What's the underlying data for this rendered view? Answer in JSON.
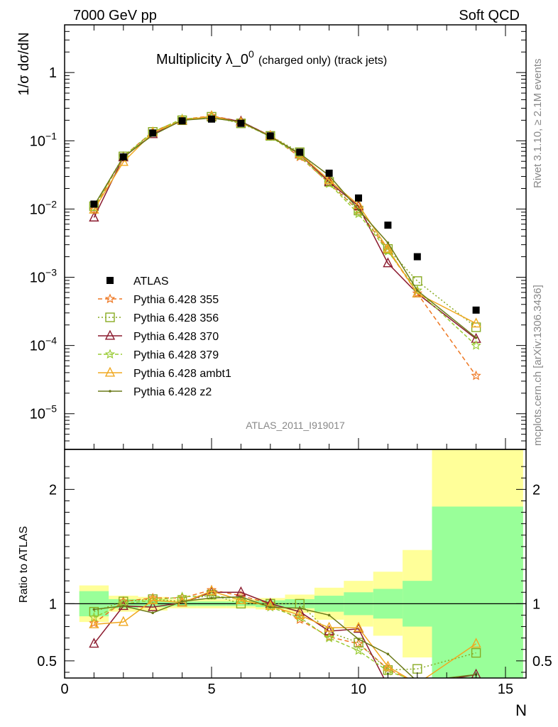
{
  "header": {
    "left": "7000 GeV pp",
    "right": "Soft QCD"
  },
  "side_text": {
    "top": "Rivet 3.1.10, ≥ 2.1M events",
    "bottom": "mcplots.cern.ch [arXiv:1306.3436]"
  },
  "title": {
    "main": "Multiplicity λ_0",
    "sup": "0",
    "sub": "(charged only) (track jets)"
  },
  "watermark": "ATLAS_2011_I919017",
  "xlabel": "N",
  "ylabel_top": "1/σ dσ/dN",
  "ylabel_bottom": "Ratio to ATLAS",
  "colors": {
    "atlas": "#000000",
    "p355": "#ee7722",
    "p356": "#88aa22",
    "p370": "#8b1a2e",
    "p379": "#99cc33",
    "ambt1": "#f0a820",
    "z2": "#6b7a1a",
    "band_inner": "#99ff99",
    "band_outer": "#ffff99"
  },
  "chart_data": {
    "type": "line",
    "x_range": [
      0,
      15.7
    ],
    "y_range_top": [
      3e-06,
      5
    ],
    "y_scale_top": "log",
    "y_range_ratio": [
      0.35,
      2.35
    ],
    "y_ticks_top": [
      {
        "v": 1e-05,
        "base": "10",
        "exp": "−5"
      },
      {
        "v": 0.0001,
        "base": "10",
        "exp": "−4"
      },
      {
        "v": 0.001,
        "base": "10",
        "exp": "−3"
      },
      {
        "v": 0.01,
        "base": "10",
        "exp": "−2"
      },
      {
        "v": 0.1,
        "base": "10",
        "exp": "−1"
      },
      {
        "v": 1,
        "base": "1",
        "exp": ""
      }
    ],
    "y_ticks_ratio": [
      "0.5",
      "1",
      "2"
    ],
    "x_ticks": [
      "0",
      "5",
      "10",
      "15"
    ],
    "legend_position": "middle-left",
    "data": {
      "name": "ATLAS",
      "x": [
        1,
        2,
        3,
        4,
        5,
        6,
        7,
        8,
        9,
        10,
        11,
        12,
        14
      ],
      "y": [
        0.0118,
        0.058,
        0.13,
        0.196,
        0.208,
        0.18,
        0.118,
        0.068,
        0.0335,
        0.0145,
        0.0058,
        0.002,
        0.00033
      ]
    },
    "band_inner": [
      [
        0.5,
        1.5,
        0.89,
        1.11
      ],
      [
        1.5,
        2.5,
        0.96,
        1.04
      ],
      [
        2.5,
        3.5,
        0.97,
        1.03
      ],
      [
        3.5,
        4.5,
        0.98,
        1.02
      ],
      [
        4.5,
        5.5,
        0.98,
        1.02
      ],
      [
        5.5,
        6.5,
        0.98,
        1.02
      ],
      [
        6.5,
        7.5,
        0.97,
        1.03
      ],
      [
        7.5,
        8.5,
        0.96,
        1.04
      ],
      [
        8.5,
        9.5,
        0.93,
        1.07
      ],
      [
        9.5,
        10.5,
        0.9,
        1.1
      ],
      [
        10.5,
        11.5,
        0.87,
        1.13
      ],
      [
        11.5,
        12.5,
        0.8,
        1.2
      ],
      [
        12.5,
        15.6,
        0.3,
        1.85
      ]
    ],
    "band_outer": [
      [
        0.5,
        1.5,
        0.84,
        1.16
      ],
      [
        1.5,
        2.5,
        0.93,
        1.07
      ],
      [
        2.5,
        3.5,
        0.94,
        1.06
      ],
      [
        3.5,
        4.5,
        0.96,
        1.04
      ],
      [
        4.5,
        5.5,
        0.96,
        1.04
      ],
      [
        5.5,
        6.5,
        0.96,
        1.04
      ],
      [
        6.5,
        7.5,
        0.95,
        1.05
      ],
      [
        7.5,
        8.5,
        0.92,
        1.08
      ],
      [
        8.5,
        9.5,
        0.86,
        1.14
      ],
      [
        9.5,
        10.5,
        0.8,
        1.2
      ],
      [
        10.5,
        11.5,
        0.72,
        1.28
      ],
      [
        11.5,
        12.5,
        0.53,
        1.47
      ],
      [
        12.5,
        15.6,
        0.3,
        2.6
      ]
    ],
    "series": [
      {
        "name": "Pythia 6.428 355",
        "color": "#ee7722",
        "dash": "6,4",
        "marker": "star",
        "x": [
          1,
          2,
          3,
          4,
          5,
          6,
          7,
          8,
          9,
          10,
          11,
          12,
          14
        ],
        "y": [
          0.0098,
          0.059,
          0.136,
          0.205,
          0.232,
          0.192,
          0.118,
          0.058,
          0.024,
          0.0095,
          0.0025,
          0.00058,
          3.6e-05
        ],
        "ratio": [
          0.83,
          1.02,
          1.05,
          1.05,
          1.12,
          1.07,
          1.0,
          0.86,
          0.71,
          0.65,
          0.43,
          0.3,
          0.11
        ]
      },
      {
        "name": "Pythia 6.428 356",
        "color": "#88aa22",
        "dash": "2,3",
        "marker": "square",
        "x": [
          1,
          2,
          3,
          4,
          5,
          6,
          7,
          8,
          9,
          10,
          11,
          12,
          14
        ],
        "y": [
          0.011,
          0.059,
          0.135,
          0.2,
          0.225,
          0.18,
          0.118,
          0.068,
          0.025,
          0.0095,
          0.0026,
          0.00088,
          0.000185
        ],
        "ratio": [
          0.93,
          1.02,
          1.04,
          1.02,
          1.08,
          1.0,
          1.0,
          1.0,
          0.75,
          0.66,
          0.42,
          0.43,
          0.57
        ]
      },
      {
        "name": "Pythia 6.428 370",
        "color": "#8b1a2e",
        "dash": "",
        "marker": "triangle",
        "x": [
          1,
          2,
          3,
          4,
          5,
          6,
          7,
          8,
          9,
          10,
          11,
          12,
          14
        ],
        "y": [
          0.0075,
          0.057,
          0.125,
          0.198,
          0.228,
          0.192,
          0.118,
          0.063,
          0.025,
          0.011,
          0.0016,
          0.00058,
          0.000125
        ],
        "ratio": [
          0.65,
          0.98,
          0.97,
          1.01,
          1.1,
          1.1,
          1.0,
          0.93,
          0.76,
          0.78,
          0.28,
          0.29,
          0.38
        ]
      },
      {
        "name": "Pythia 6.428 379",
        "color": "#99cc33",
        "dash": "5,3",
        "marker": "star",
        "x": [
          1,
          2,
          3,
          4,
          5,
          6,
          7,
          8,
          9,
          10,
          11,
          12,
          14
        ],
        "y": [
          0.0105,
          0.058,
          0.134,
          0.21,
          0.22,
          0.185,
          0.115,
          0.06,
          0.0235,
          0.0085,
          0.0024,
          0.00064,
          0.0001
        ],
        "ratio": [
          0.88,
          1.0,
          1.03,
          1.06,
          1.07,
          1.04,
          0.97,
          0.88,
          0.7,
          0.59,
          0.41,
          0.32,
          0.3
        ]
      },
      {
        "name": "Pythia 6.428 ambt1",
        "color": "#f0a820",
        "dash": "",
        "marker": "triangle",
        "x": [
          1,
          2,
          3,
          4,
          5,
          6,
          7,
          8,
          9,
          10,
          11,
          12,
          14
        ],
        "y": [
          0.0098,
          0.049,
          0.132,
          0.198,
          0.23,
          0.185,
          0.118,
          0.064,
          0.0265,
          0.0115,
          0.0026,
          0.00058,
          0.00021
        ],
        "ratio": [
          0.82,
          0.84,
          1.03,
          1.01,
          1.11,
          1.03,
          0.98,
          0.9,
          0.79,
          0.79,
          0.45,
          0.3,
          0.65
        ]
      },
      {
        "name": "Pythia 6.428 z2",
        "color": "#6b7a1a",
        "dash": "",
        "marker": "dot",
        "x": [
          1,
          2,
          3,
          4,
          5,
          6,
          7,
          8,
          9,
          10,
          11,
          12,
          14
        ],
        "y": [
          0.0112,
          0.058,
          0.121,
          0.2,
          0.215,
          0.19,
          0.115,
          0.065,
          0.031,
          0.0098,
          0.0032,
          0.00064,
          0.00013
        ],
        "ratio": [
          0.95,
          0.98,
          0.92,
          1.02,
          1.05,
          1.06,
          0.97,
          0.96,
          0.9,
          0.69,
          0.56,
          0.32,
          0.38
        ]
      }
    ]
  }
}
